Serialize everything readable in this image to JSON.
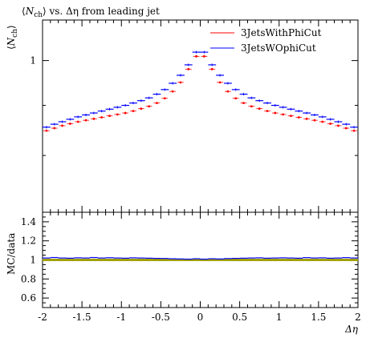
{
  "chart_data": [
    {
      "type": "line",
      "title": "⟨N_ch⟩ vs. Δη from leading jet",
      "title_parts": {
        "open": "⟨",
        "n": "N",
        "sub": "ch",
        "rest": "⟩ vs. Δη from leading jet"
      },
      "ylabel": "⟨N_ch⟩",
      "ylabel_parts": {
        "open": "⟨",
        "n": "N",
        "sub": "ch",
        "close": "⟩"
      },
      "yscale": "log",
      "yticks": [
        {
          "value": 1,
          "label": "1"
        }
      ],
      "ylim": [
        0.7,
        1.1
      ],
      "xlim": [
        -2,
        2
      ],
      "legend": {
        "position": "top-right"
      },
      "x": [
        -1.95,
        -1.85,
        -1.75,
        -1.65,
        -1.55,
        -1.45,
        -1.35,
        -1.25,
        -1.15,
        -1.05,
        -0.95,
        -0.85,
        -0.75,
        -0.65,
        -0.55,
        -0.45,
        -0.35,
        -0.25,
        -0.15,
        -0.05,
        0.05,
        0.15,
        0.25,
        0.35,
        0.45,
        0.55,
        0.65,
        0.75,
        0.85,
        0.95,
        1.05,
        1.15,
        1.25,
        1.35,
        1.45,
        1.55,
        1.65,
        1.75,
        1.85,
        1.95
      ],
      "series": [
        {
          "name": "3JetsWithPhiCut",
          "color": "#ff0000",
          "marker": "dot",
          "values": [
            0.848,
            0.853,
            0.858,
            0.862,
            0.866,
            0.869,
            0.872,
            0.875,
            0.878,
            0.881,
            0.884,
            0.888,
            0.893,
            0.898,
            0.905,
            0.915,
            0.93,
            0.95,
            0.98,
            1.01,
            1.01,
            0.98,
            0.95,
            0.93,
            0.915,
            0.905,
            0.898,
            0.893,
            0.888,
            0.884,
            0.881,
            0.878,
            0.875,
            0.872,
            0.869,
            0.866,
            0.862,
            0.858,
            0.853,
            0.848
          ]
        },
        {
          "name": "3JetsWOphiCut",
          "color": "#0000ff",
          "marker": "line",
          "values": [
            0.855,
            0.861,
            0.866,
            0.871,
            0.876,
            0.88,
            0.884,
            0.888,
            0.892,
            0.896,
            0.9,
            0.905,
            0.91,
            0.916,
            0.924,
            0.934,
            0.948,
            0.966,
            0.99,
            1.02,
            1.02,
            0.99,
            0.966,
            0.948,
            0.934,
            0.924,
            0.916,
            0.91,
            0.905,
            0.9,
            0.896,
            0.892,
            0.888,
            0.884,
            0.88,
            0.876,
            0.871,
            0.866,
            0.861,
            0.855
          ]
        }
      ]
    },
    {
      "type": "line",
      "ylabel": "MC/data",
      "xlabel": "Δη",
      "xlim": [
        -2,
        2
      ],
      "ylim": [
        0.5,
        1.5
      ],
      "yticks": [
        "0.6",
        "0.8",
        "1",
        "1.2",
        "1.4"
      ],
      "xticks": [
        "-2",
        "-1.5",
        "-1",
        "-0.5",
        "0",
        "0.5",
        "1",
        "1.5",
        "2"
      ],
      "reference": {
        "value": 1.0,
        "color": "#a0a000"
      },
      "series": [
        {
          "name": "3JetsWOphiCut",
          "color": "#0000ff",
          "values": [
            1.02,
            1.025,
            1.02,
            1.018,
            1.022,
            1.02,
            1.025,
            1.02,
            1.023,
            1.02,
            1.018,
            1.022,
            1.02,
            1.018,
            1.016,
            1.015,
            1.012,
            1.01,
            1.008,
            1.012,
            1.008,
            1.012,
            1.01,
            1.014,
            1.016,
            1.018,
            1.02,
            1.022,
            1.018,
            1.02,
            1.022,
            1.02,
            1.018,
            1.024,
            1.02,
            1.022,
            1.018,
            1.02,
            1.024,
            1.02
          ]
        }
      ]
    }
  ]
}
